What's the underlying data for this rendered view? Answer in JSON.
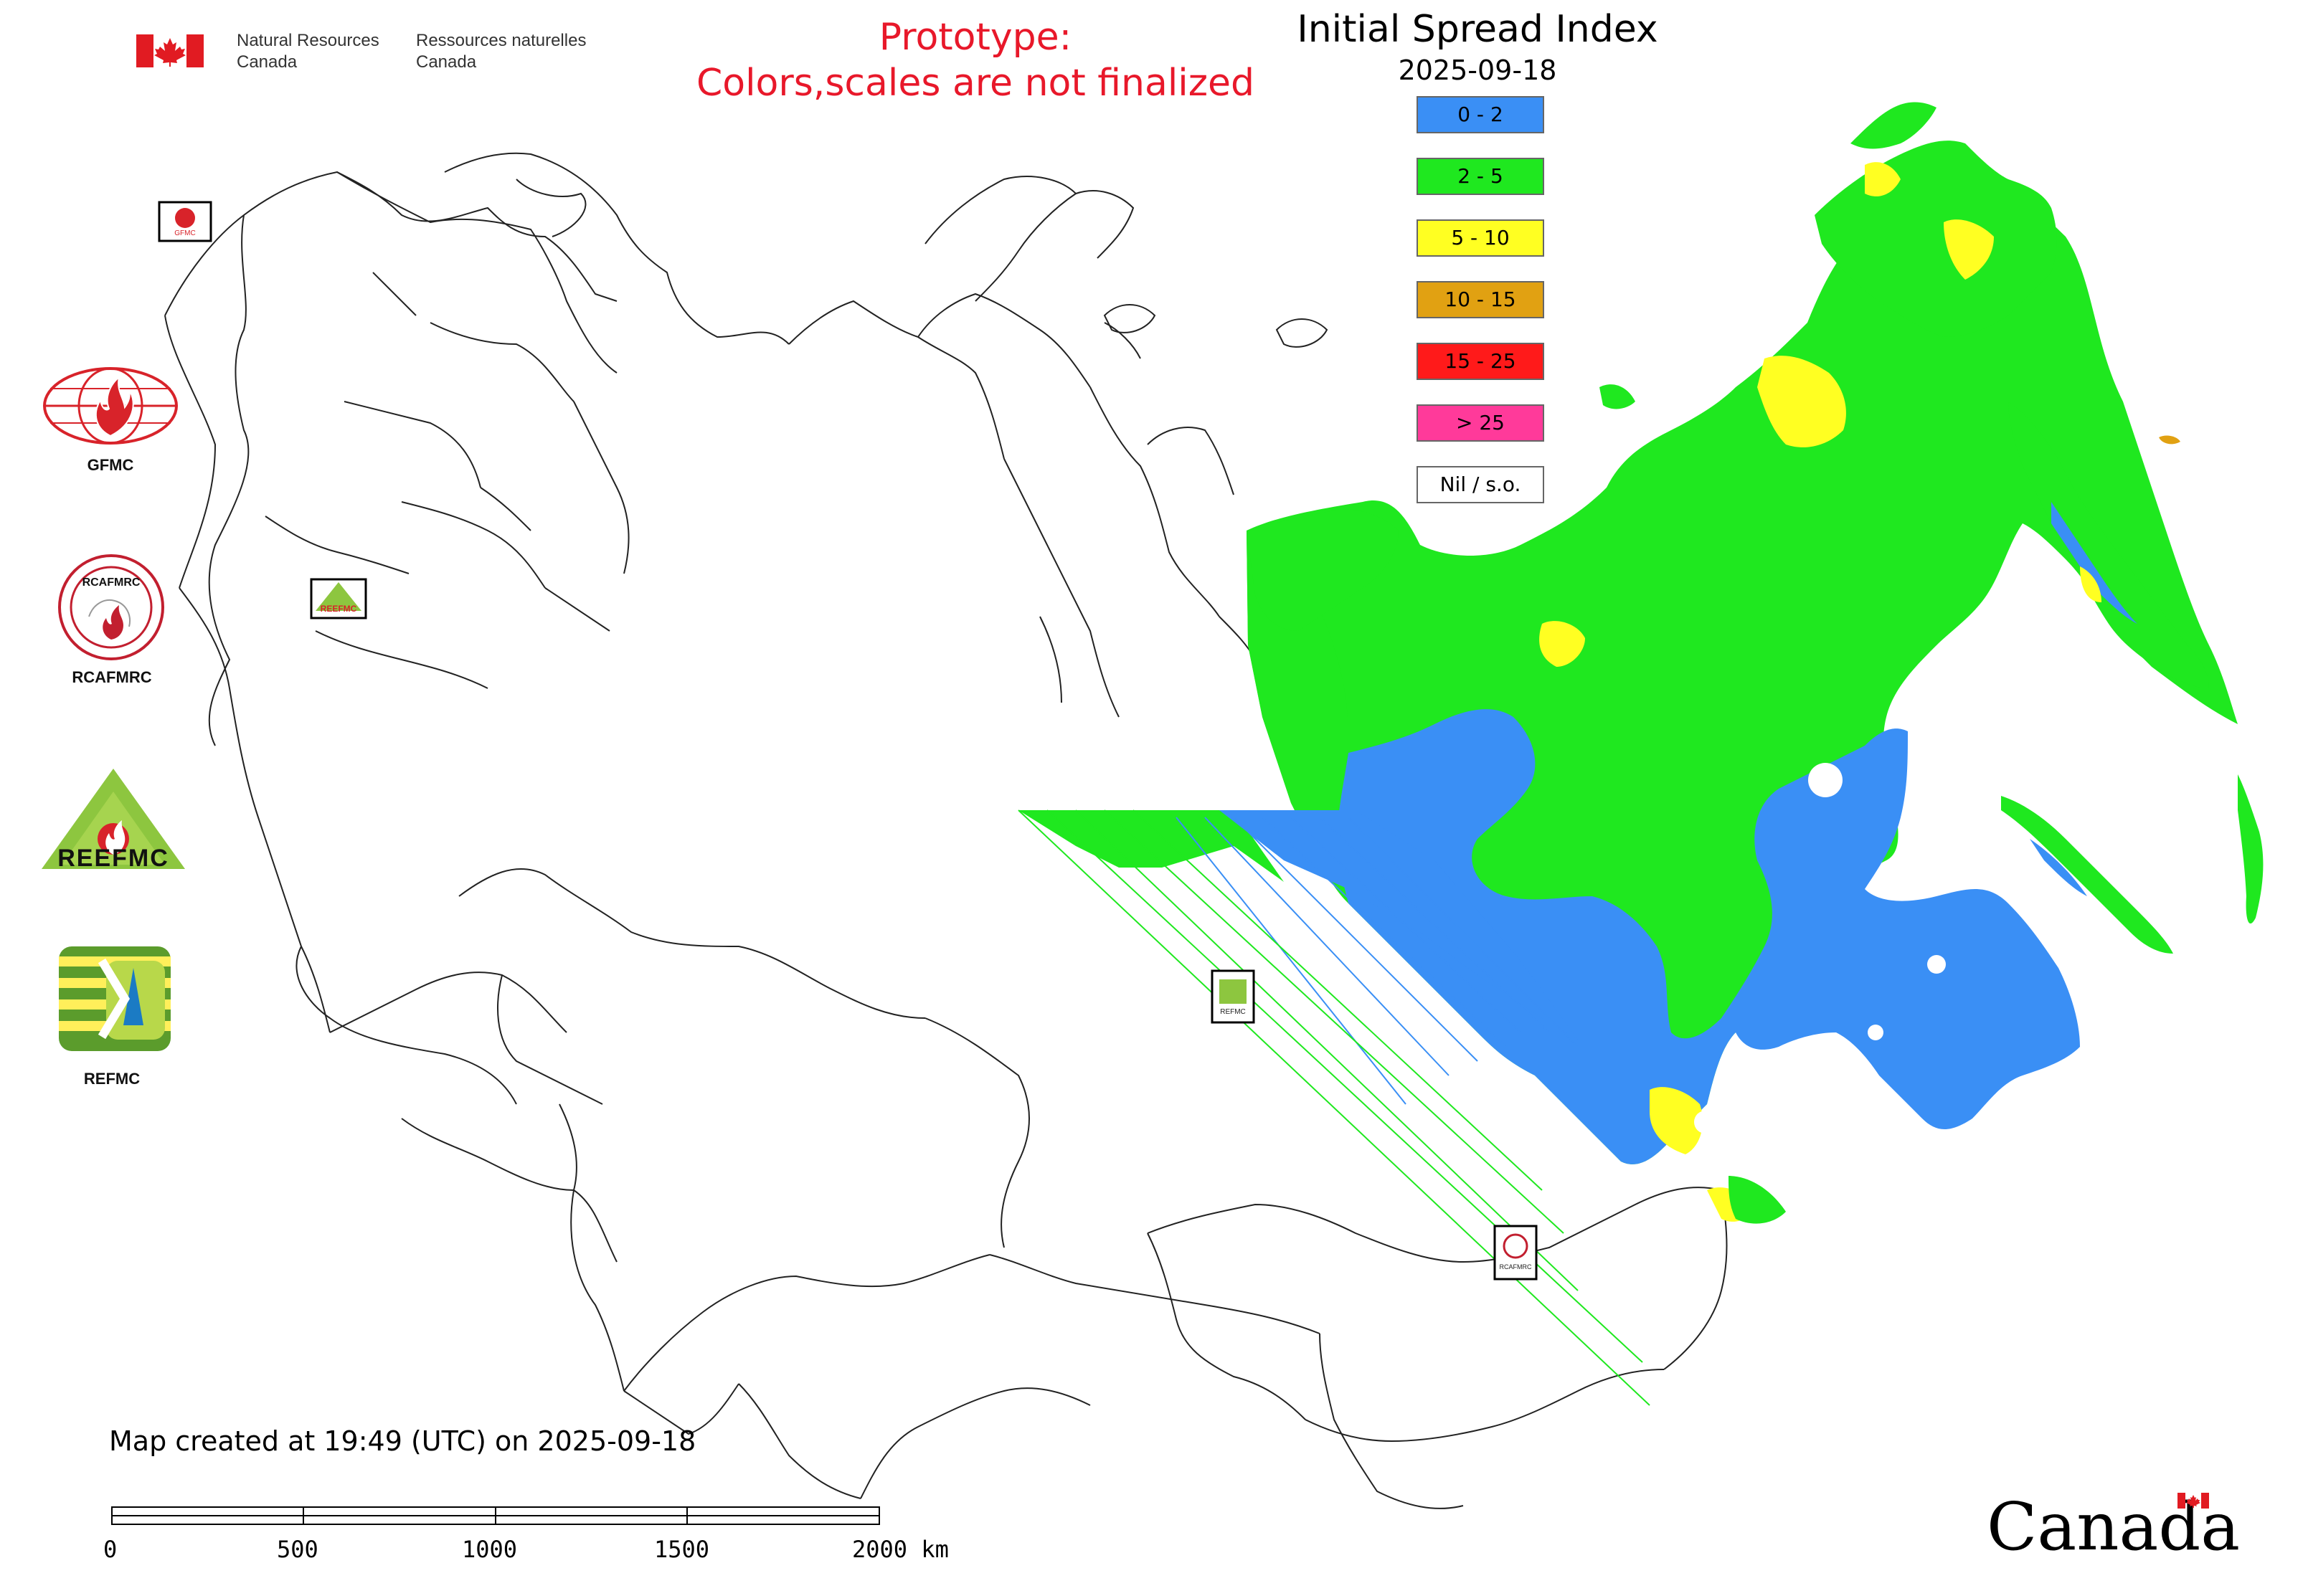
{
  "header": {
    "department_en": [
      "Natural Resources",
      "Canada"
    ],
    "department_fr": [
      "Ressources naturelles",
      "Canada"
    ]
  },
  "warning": {
    "line1": "Prototype:",
    "line2": "Colors,scales are not finalized"
  },
  "map": {
    "title": "Initial Spread Index",
    "date": "2025-09-18"
  },
  "legend": [
    {
      "label": "0 - 2",
      "color": "#3a8ff5"
    },
    {
      "label": "2 - 5",
      "color": "#1fe81f"
    },
    {
      "label": "5 - 10",
      "color": "#ffff22"
    },
    {
      "label": "10 - 15",
      "color": "#e1a112"
    },
    {
      "label": "15 - 25",
      "color": "#ff1a1a"
    },
    {
      "label": "> 25",
      "color": "#ff3a9a"
    },
    {
      "label": "Nil / s.o.",
      "color": "#ffffff"
    }
  ],
  "logos": [
    {
      "name": "GFMC",
      "label": "GFMC"
    },
    {
      "name": "RCAFMRC",
      "label": "RCAFMRC",
      "ring_text": "RCAFMRC"
    },
    {
      "name": "REEFMC",
      "label": "REEFMC"
    },
    {
      "name": "REFMC",
      "label": "REFMC"
    }
  ],
  "map_markers": {
    "gfmc": "GFMC",
    "reefmc": "REEFMC",
    "refmc": "REFMC",
    "rcafmrc": "RCAFMRC"
  },
  "footer": {
    "created": "Map created at 19:49 (UTC) on 2025-09-18",
    "scale_labels": [
      "0",
      "500",
      "1000",
      "1500",
      "2000 km"
    ],
    "wordmark": "Canada"
  }
}
